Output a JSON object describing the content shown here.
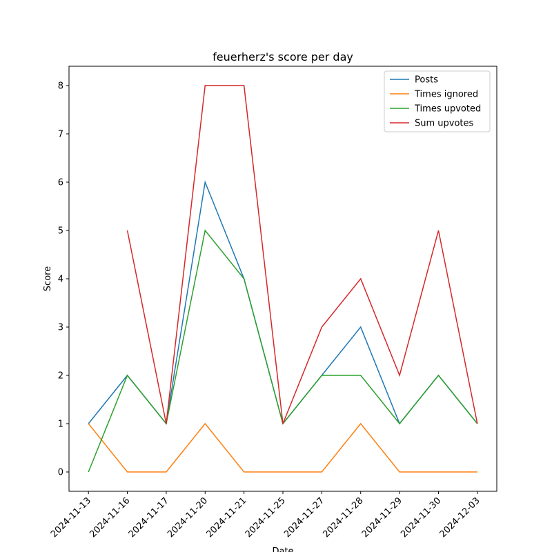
{
  "chart_data": {
    "type": "line",
    "title": "feuerherz's score per day",
    "xlabel": "Date",
    "ylabel": "Score",
    "categories": [
      "2024-11-13",
      "2024-11-16",
      "2024-11-17",
      "2024-11-20",
      "2024-11-21",
      "2024-11-25",
      "2024-11-27",
      "2024-11-28",
      "2024-11-29",
      "2024-11-30",
      "2024-12-03"
    ],
    "series": [
      {
        "name": "Posts",
        "color": "#1f77b4",
        "values": [
          1,
          2,
          1,
          6,
          4,
          1,
          2,
          3,
          1,
          2,
          1
        ]
      },
      {
        "name": "Times ignored",
        "color": "#ff7f0e",
        "values": [
          1,
          0,
          0,
          1,
          0,
          0,
          0,
          1,
          0,
          0,
          0
        ]
      },
      {
        "name": "Times upvoted",
        "color": "#2ca02c",
        "values": [
          0,
          2,
          1,
          5,
          4,
          1,
          2,
          2,
          1,
          2,
          1
        ]
      },
      {
        "name": "Sum upvotes",
        "color": "#d62728",
        "values": [
          null,
          5,
          1,
          8,
          8,
          1,
          3,
          4,
          2,
          5,
          1
        ]
      }
    ],
    "ylim": [
      -0.4,
      8.4
    ],
    "yticks": [
      0,
      1,
      2,
      3,
      4,
      5,
      6,
      7,
      8
    ],
    "legend": "upper right",
    "grid": false
  }
}
